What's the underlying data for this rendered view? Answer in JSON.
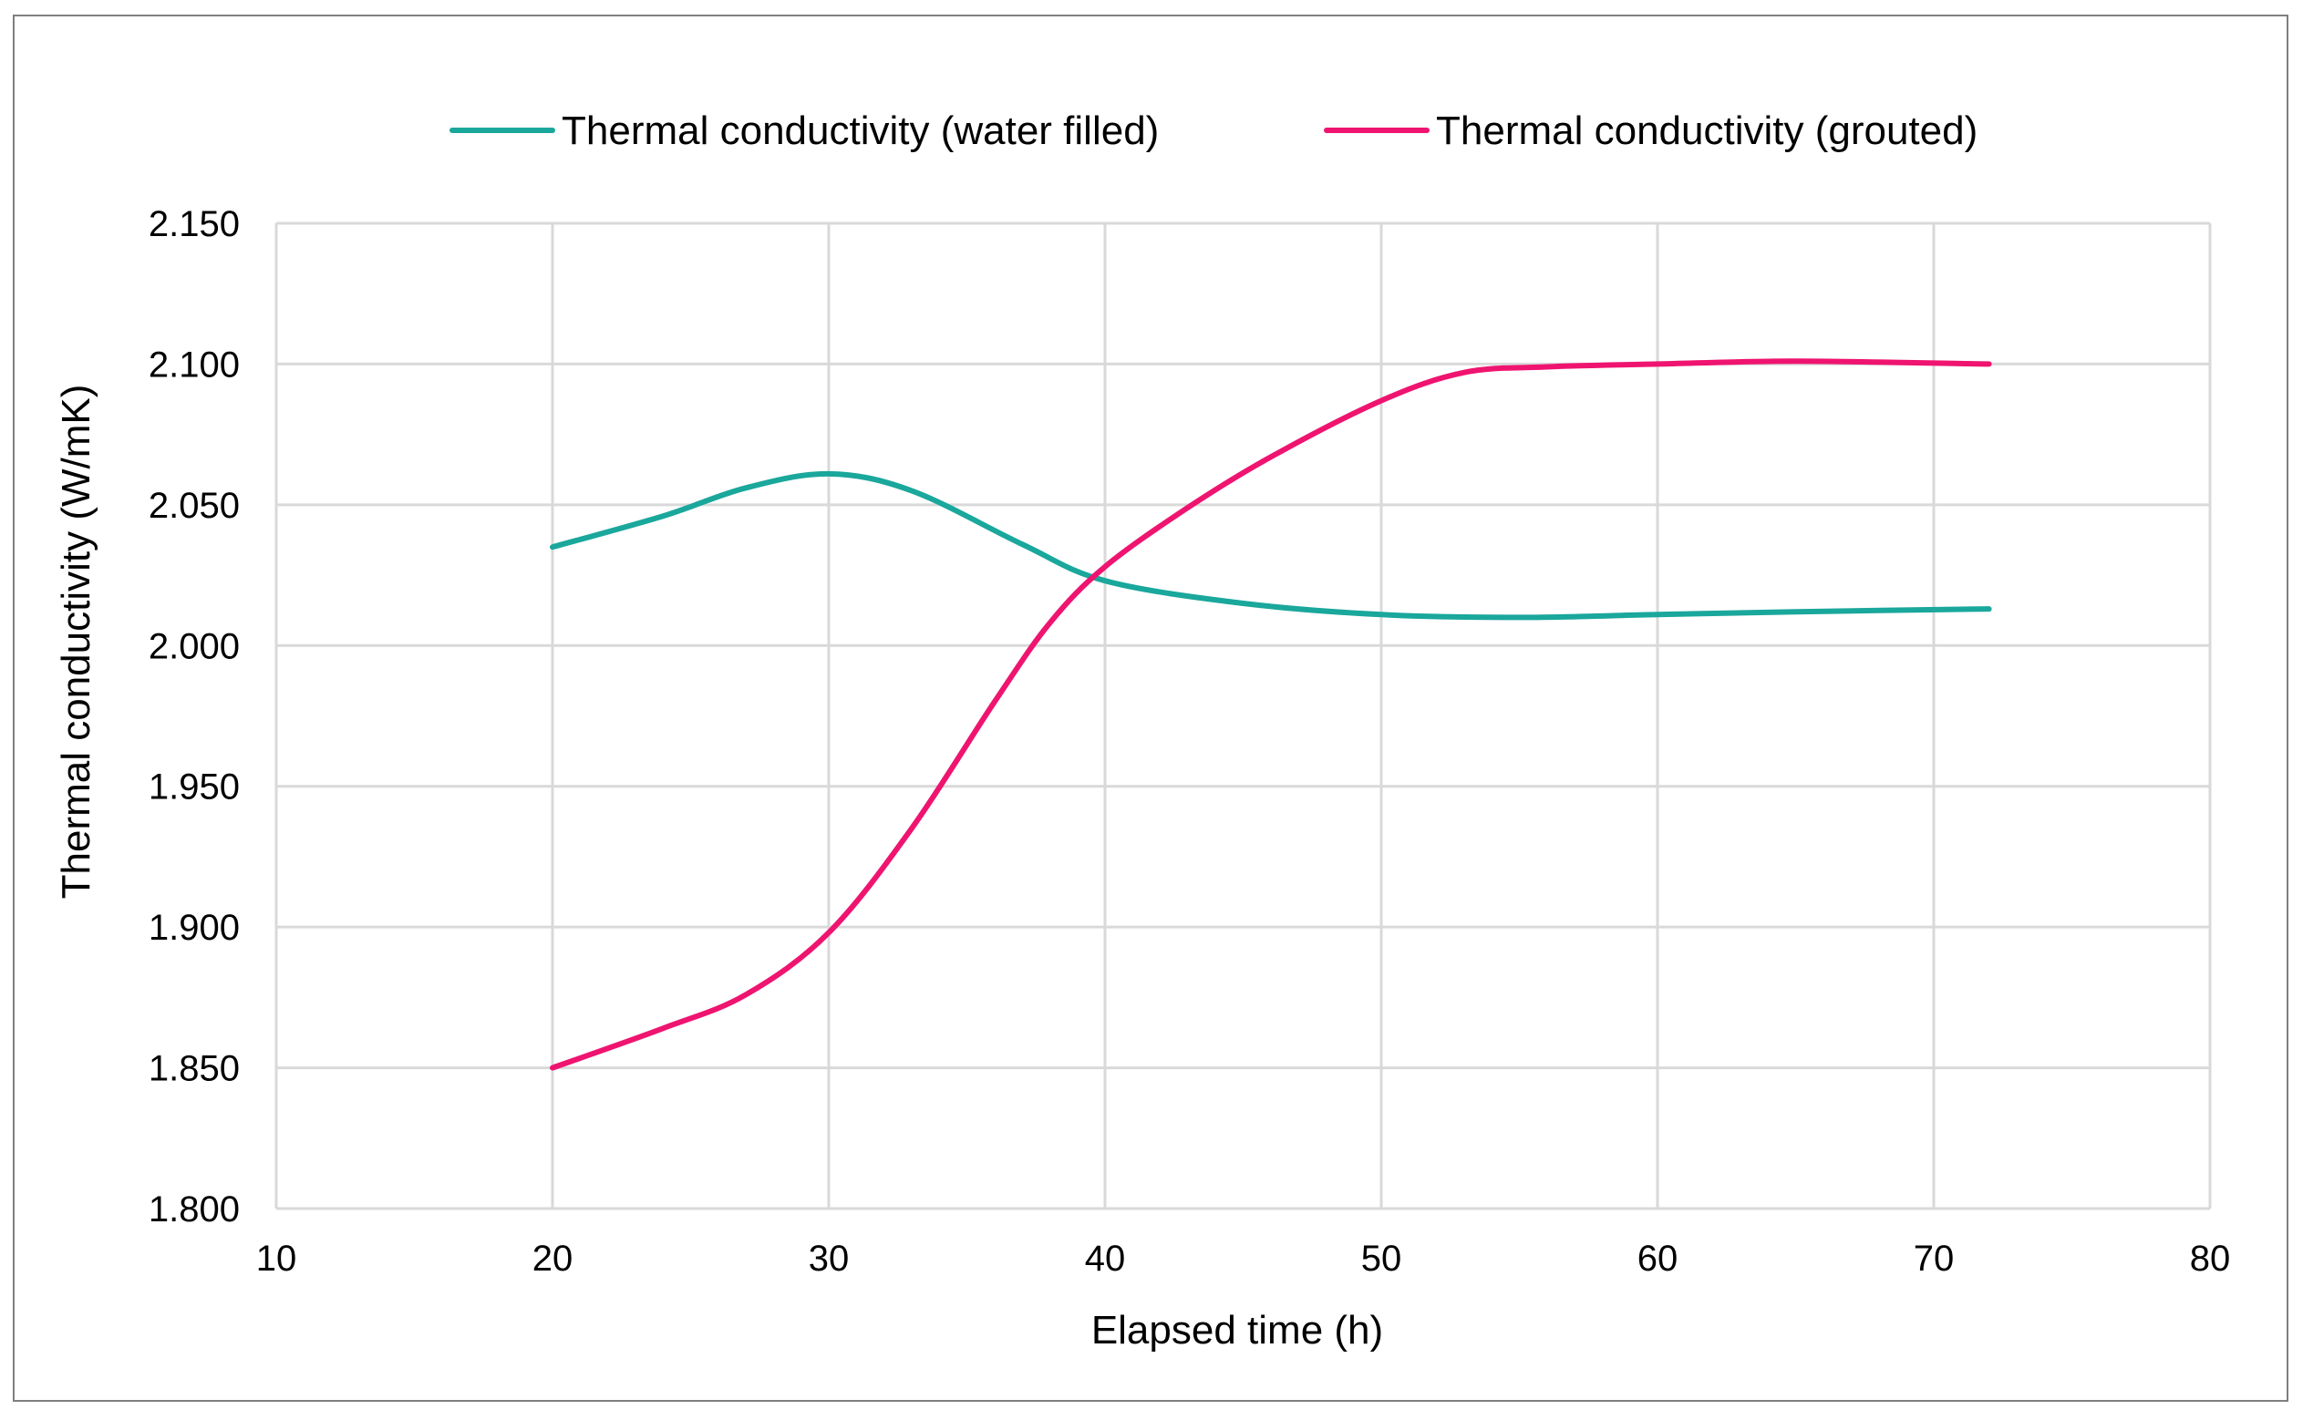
{
  "chart_data": {
    "type": "line",
    "title": "",
    "xlabel": "Elapsed time (h)",
    "ylabel": "Thermal conductivity (W/mK)",
    "xlim": [
      10,
      80
    ],
    "ylim": [
      1.8,
      2.15
    ],
    "x_ticks": [
      "10",
      "20",
      "30",
      "40",
      "50",
      "60",
      "70",
      "80"
    ],
    "y_ticks": [
      "1.800",
      "1.850",
      "1.900",
      "1.950",
      "2.000",
      "2.050",
      "2.100",
      "2.150"
    ],
    "grid": true,
    "legend_position": "top",
    "smooth": true,
    "series": [
      {
        "name": "Thermal conductivity (water filled)",
        "color": "#1aa79c",
        "x": [
          20,
          24,
          27,
          30,
          33,
          37,
          40,
          45,
          50,
          55,
          60,
          65,
          72
        ],
        "y": [
          2.035,
          2.046,
          2.056,
          2.061,
          2.055,
          2.036,
          2.023,
          2.015,
          2.011,
          2.01,
          2.011,
          2.012,
          2.013
        ]
      },
      {
        "name": "Thermal conductivity (grouted)",
        "color": "#ef1470",
        "x": [
          20,
          24,
          27,
          30,
          33,
          36,
          38,
          40,
          43,
          46,
          50,
          53,
          56,
          60,
          65,
          72
        ],
        "y": [
          1.85,
          1.864,
          1.876,
          1.898,
          1.935,
          1.98,
          2.008,
          2.028,
          2.049,
          2.067,
          2.087,
          2.097,
          2.099,
          2.1,
          2.101,
          2.1
        ]
      }
    ]
  }
}
